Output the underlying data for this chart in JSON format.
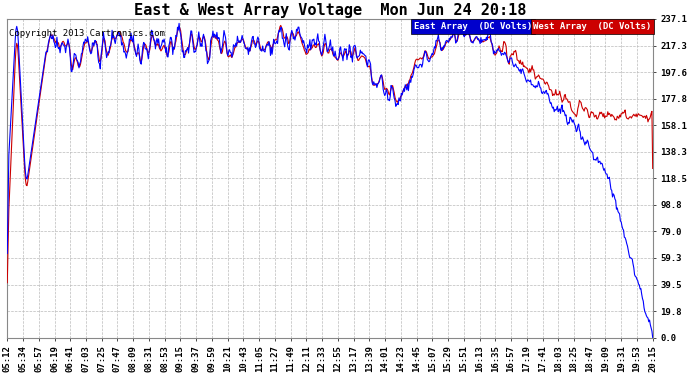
{
  "title": "East & West Array Voltage  Mon Jun 24 20:18",
  "copyright": "Copyright 2013 Cartronics.com",
  "legend_east": "East Array  (DC Volts)",
  "legend_west": "West Array  (DC Volts)",
  "east_color": "#0000ff",
  "west_color": "#cc0000",
  "legend_east_bg": "#0000cc",
  "legend_west_bg": "#cc0000",
  "bg_color": "#ffffff",
  "plot_bg_color": "#ffffff",
  "grid_color": "#bbbbbb",
  "title_fontsize": 11,
  "copyright_fontsize": 6.5,
  "tick_fontsize": 6.5,
  "ylim": [
    0.0,
    237.1
  ],
  "yticks": [
    0.0,
    19.8,
    39.5,
    59.3,
    79.0,
    98.8,
    118.5,
    138.3,
    158.1,
    177.8,
    197.6,
    217.3,
    237.1
  ],
  "xtick_labels": [
    "05:12",
    "05:34",
    "05:57",
    "06:19",
    "06:41",
    "07:03",
    "07:25",
    "07:47",
    "08:09",
    "08:31",
    "08:53",
    "09:15",
    "09:37",
    "09:59",
    "10:21",
    "10:43",
    "11:05",
    "11:27",
    "11:49",
    "12:11",
    "12:33",
    "12:55",
    "13:17",
    "13:39",
    "14:01",
    "14:23",
    "14:45",
    "15:07",
    "15:29",
    "15:51",
    "16:13",
    "16:35",
    "16:57",
    "17:19",
    "17:41",
    "18:03",
    "18:25",
    "18:47",
    "19:09",
    "19:31",
    "19:53",
    "20:15"
  ]
}
